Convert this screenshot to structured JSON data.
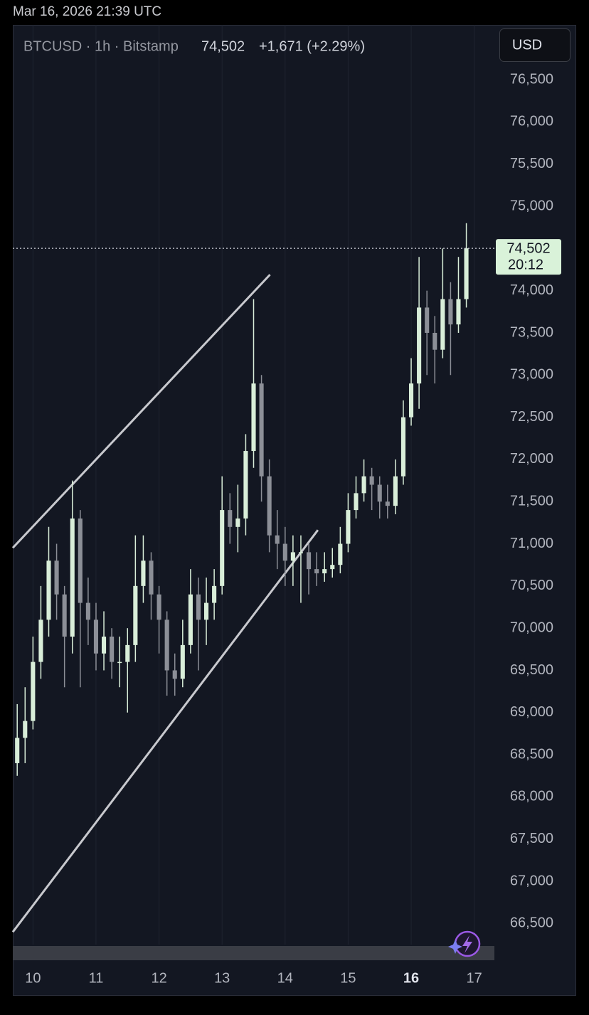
{
  "header": {
    "timestamp": "Mar 16, 2026 21:39 UTC",
    "symbol": "BTCUSD · 1h · Bitstamp",
    "price": "74,502",
    "change": "+1,671 (+2.29%)",
    "currency": "USD"
  },
  "chart_data": {
    "type": "candlestick",
    "x": [
      9.75,
      9.875,
      10,
      10.125,
      10.25,
      10.375,
      10.5,
      10.625,
      10.75,
      10.875,
      11,
      11.125,
      11.25,
      11.375,
      11.5,
      11.625,
      11.75,
      11.875,
      12,
      12.125,
      12.25,
      12.375,
      12.5,
      12.625,
      12.75,
      12.875,
      13,
      13.125,
      13.25,
      13.375,
      13.5,
      13.625,
      13.75,
      13.875,
      14,
      14.125,
      14.25,
      14.375,
      14.5,
      14.625,
      14.75,
      14.875,
      15,
      15.125,
      15.25,
      15.375,
      15.5,
      15.625,
      15.75,
      15.875,
      16,
      16.125,
      16.25,
      16.375,
      16.5,
      16.625,
      16.75,
      16.875
    ],
    "open": [
      68400,
      68700,
      68900,
      69600,
      70100,
      70800,
      70400,
      69900,
      71300,
      70300,
      70100,
      69700,
      69900,
      69600,
      69600,
      69800,
      70500,
      70800,
      70400,
      70100,
      69500,
      69400,
      69800,
      70400,
      70100,
      70300,
      70500,
      71400,
      71200,
      71300,
      72100,
      72900,
      71800,
      71100,
      71000,
      70800,
      70900,
      70900,
      70700,
      70650,
      70700,
      70750,
      71000,
      71400,
      71600,
      71800,
      71700,
      71500,
      71450,
      71800,
      72500,
      72900,
      73800,
      73500,
      73300,
      73900,
      73600,
      73900
    ],
    "high": [
      69100,
      69300,
      69900,
      70500,
      71200,
      71000,
      70500,
      71750,
      71400,
      70600,
      70300,
      70200,
      70000,
      69900,
      70000,
      71100,
      71100,
      70900,
      70500,
      70200,
      69700,
      70100,
      70700,
      70600,
      70600,
      70700,
      71800,
      71600,
      71700,
      72300,
      73900,
      73000,
      72000,
      71400,
      71200,
      71100,
      71100,
      71000,
      70900,
      70900,
      70950,
      71200,
      71600,
      71800,
      72000,
      71900,
      71800,
      71700,
      72000,
      72700,
      73200,
      74400,
      74000,
      73700,
      74500,
      74100,
      74400,
      74800
    ],
    "low": [
      68250,
      68400,
      68800,
      69400,
      69900,
      70100,
      69300,
      69700,
      69300,
      69800,
      69500,
      69500,
      69400,
      69300,
      69000,
      69600,
      70300,
      70100,
      69700,
      69200,
      69200,
      69300,
      69700,
      69500,
      69800,
      70100,
      70400,
      71000,
      70900,
      71100,
      71900,
      71500,
      70900,
      70700,
      70500,
      70500,
      70300,
      70400,
      70500,
      70550,
      70600,
      70650,
      70900,
      71300,
      71500,
      71400,
      71300,
      71300,
      71350,
      71700,
      72400,
      72600,
      73000,
      72900,
      73200,
      73000,
      73500,
      73800
    ],
    "close": [
      68700,
      68900,
      69600,
      70100,
      70800,
      70400,
      69900,
      71300,
      70300,
      70100,
      69700,
      69900,
      69600,
      69600,
      69800,
      70500,
      70800,
      70400,
      70100,
      69500,
      69400,
      69800,
      70400,
      70100,
      70300,
      70500,
      71400,
      71200,
      71300,
      72100,
      72900,
      71800,
      71100,
      71000,
      70800,
      70900,
      70900,
      70700,
      70650,
      70700,
      70750,
      71000,
      71400,
      71600,
      71800,
      71700,
      71500,
      71450,
      71800,
      72500,
      72900,
      73800,
      73500,
      73300,
      73900,
      73600,
      73900,
      74502
    ],
    "up_color": "#d9eed9",
    "down_color": "#8c8f97",
    "xlim": [
      9.68,
      17.32
    ],
    "xticks": [
      10,
      11,
      12,
      13,
      14,
      15,
      16,
      17
    ],
    "highlight_xtick": 16,
    "ylim": [
      66250,
      77150
    ],
    "yticks": [
      {
        "value": 66500,
        "label": "66,500"
      },
      {
        "value": 67000,
        "label": "67,000"
      },
      {
        "value": 67500,
        "label": "67,500"
      },
      {
        "value": 68000,
        "label": "68,000"
      },
      {
        "value": 68500,
        "label": "68,500"
      },
      {
        "value": 69000,
        "label": "69,000"
      },
      {
        "value": 69500,
        "label": "69,500"
      },
      {
        "value": 70000,
        "label": "70,000"
      },
      {
        "value": 70500,
        "label": "70,500"
      },
      {
        "value": 71000,
        "label": "71,000"
      },
      {
        "value": 71500,
        "label": "71,500"
      },
      {
        "value": 72000,
        "label": "72,000"
      },
      {
        "value": 72500,
        "label": "72,500"
      },
      {
        "value": 73000,
        "label": "73,000"
      },
      {
        "value": 73500,
        "label": "73,500"
      },
      {
        "value": 74000,
        "label": "74,000"
      },
      {
        "value": 74500,
        "label": "74,500"
      },
      {
        "value": 75000,
        "label": "75,000"
      },
      {
        "value": 75500,
        "label": "75,500"
      },
      {
        "value": 76000,
        "label": "76,000"
      },
      {
        "value": 76500,
        "label": "76,500"
      }
    ],
    "xgrid": true,
    "last_price": 74502,
    "last_price_label": "74,502",
    "countdown": "20:12",
    "last_price_color": "#d9f2d9",
    "trendlines": [
      {
        "x": [
          9.68,
          13.76
        ],
        "y": [
          70952,
          74190
        ]
      },
      {
        "x": [
          9.68,
          14.52
        ],
        "y": [
          66399,
          71163
        ]
      }
    ],
    "trendline_color": "#c8c9ce"
  }
}
